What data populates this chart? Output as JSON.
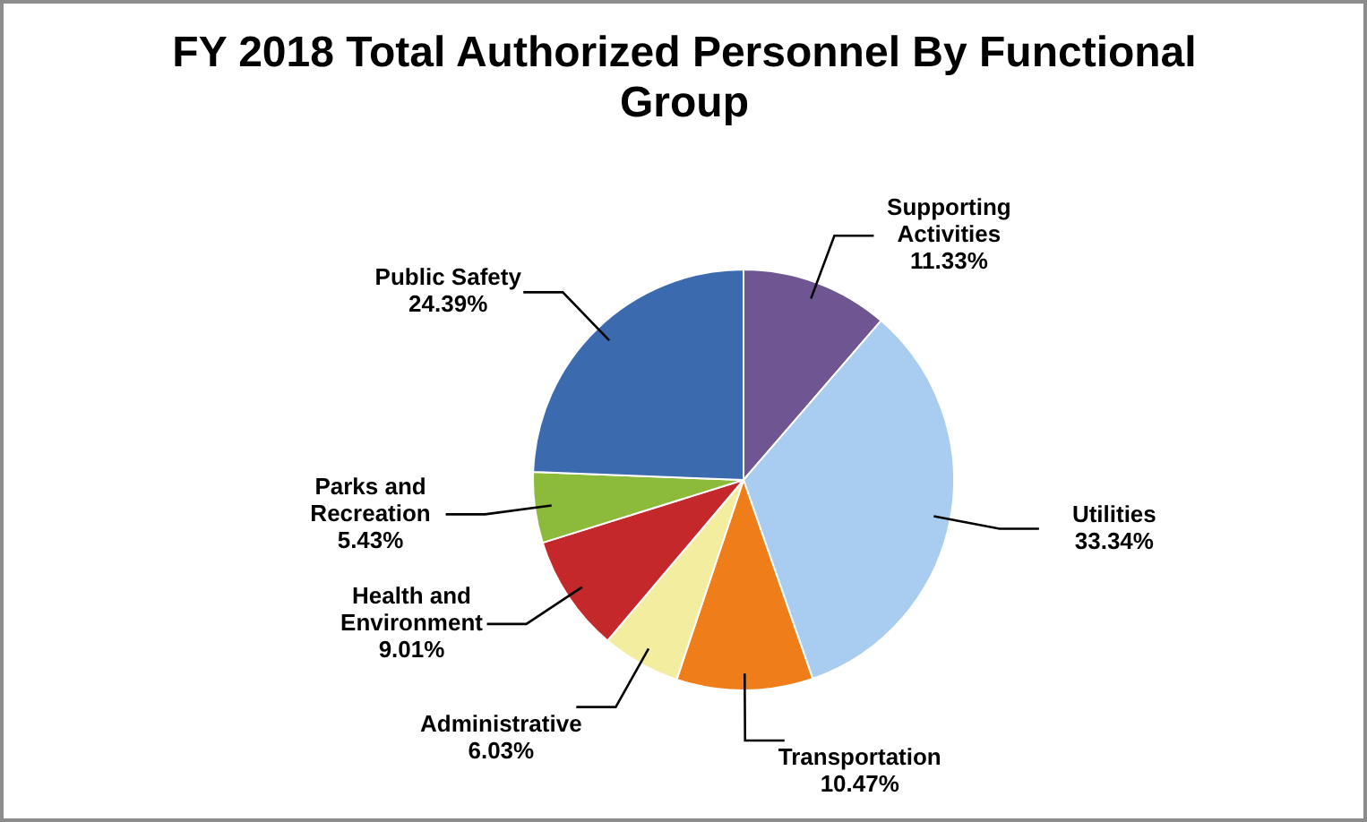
{
  "chart_data": {
    "type": "pie",
    "title": "FY 2018 Total Authorized Personnel By Functional Group",
    "categories": [
      "Supporting Activities",
      "Utilities",
      "Transportation",
      "Administrative",
      "Health and Environment",
      "Parks and Recreation",
      "Public Safety"
    ],
    "values": [
      11.33,
      33.34,
      10.47,
      6.03,
      9.01,
      5.43,
      24.39
    ],
    "value_labels": [
      "11.33%",
      "33.34%",
      "10.47%",
      "6.03%",
      "9.01%",
      "5.43%",
      "24.39%"
    ],
    "colors": [
      "#6f5592",
      "#a9cdf0",
      "#ee7d1a",
      "#f3eda0",
      "#c4282b",
      "#8cbb3c",
      "#3b6aae"
    ],
    "legend": false
  }
}
